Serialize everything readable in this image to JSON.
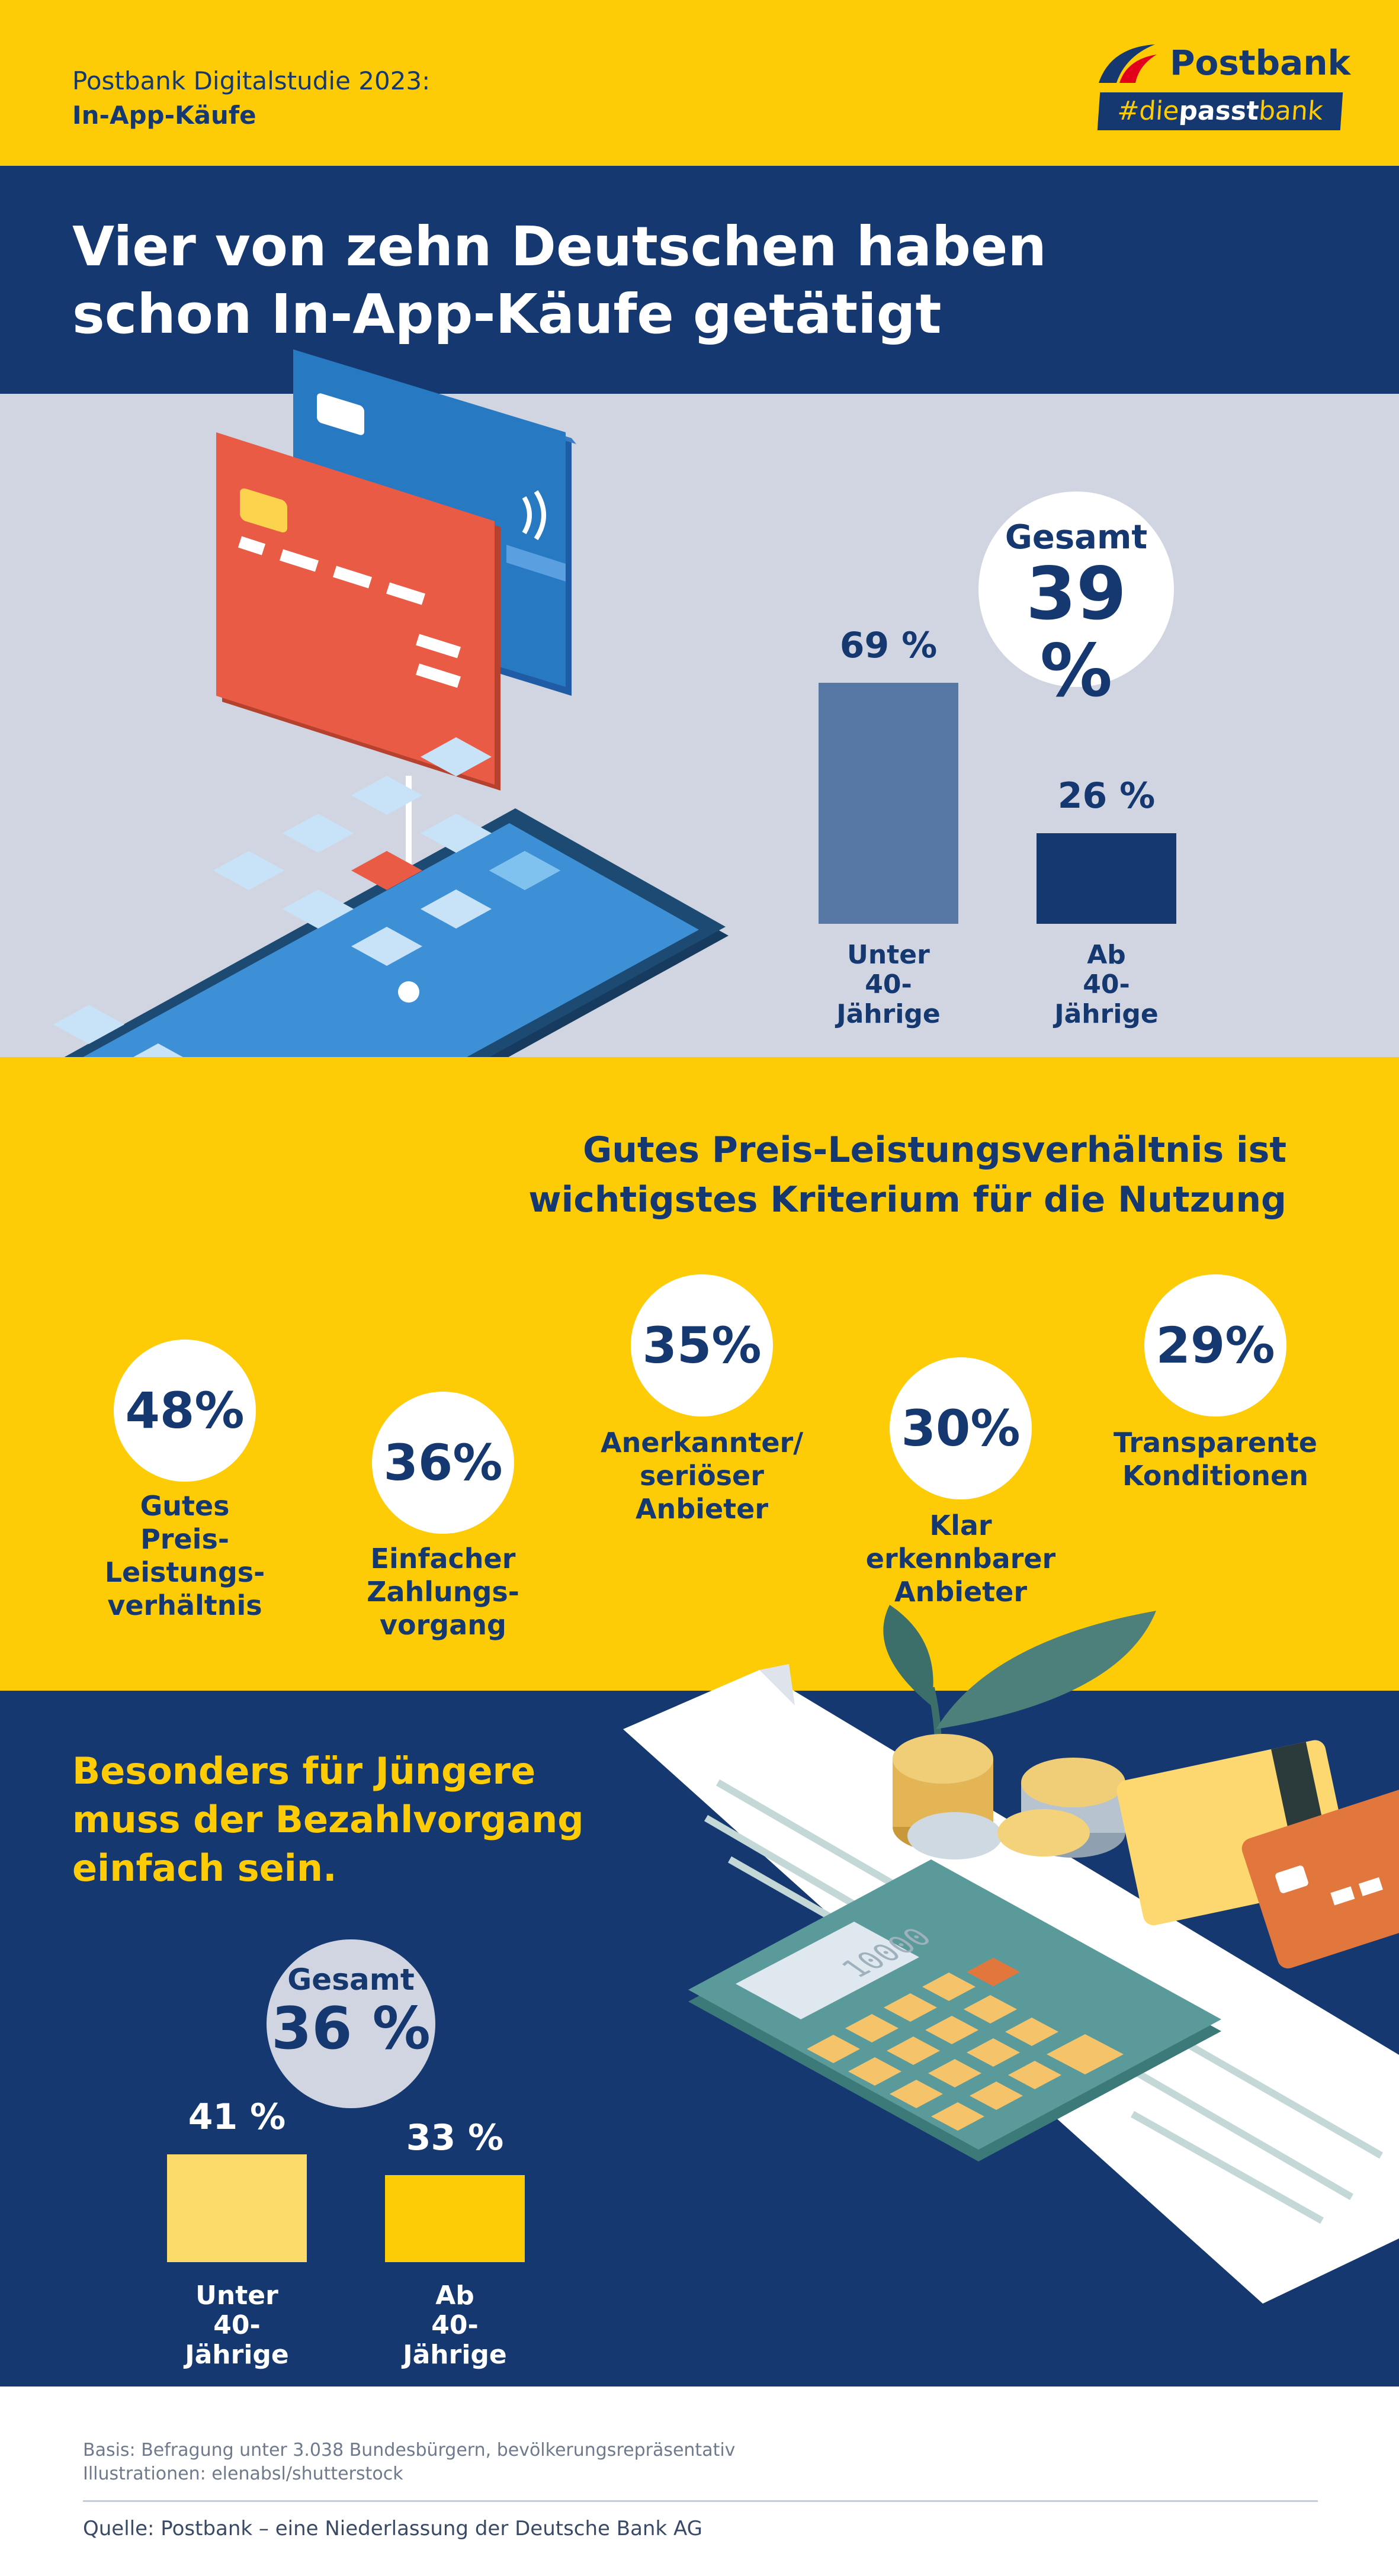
{
  "header": {
    "study_line1": "Postbank Digitalstudie 2023:",
    "study_line2": "In-App-Käufe",
    "logo_name": "Postbank",
    "hashtag_pre": "#die",
    "hashtag_bold": "passt",
    "hashtag_post": "bank"
  },
  "title": {
    "line1": "Vier von zehn Deutschen haben",
    "line2": "schon In-App-Käufe getätigt"
  },
  "colors": {
    "navy": "#14386f",
    "yellow": "#fdcc07",
    "steel_blue": "#5778a4",
    "light_yellow": "#fddb6b",
    "grey_band": "#d0d5e1"
  },
  "chart_data": [
    {
      "type": "bar",
      "categories": [
        "Unter 40-Jährige",
        "Ab 40-Jährige"
      ],
      "category_lines": [
        [
          "Unter",
          "40-Jährige"
        ],
        [
          "Ab",
          "40-Jährige"
        ]
      ],
      "values": [
        69,
        26
      ],
      "value_labels": [
        "69 %",
        "26 %"
      ],
      "total_label": "Gesamt",
      "total_value": "39 %",
      "ylim": [
        0,
        100
      ]
    },
    {
      "type": "bar",
      "title_lines": [
        "Gutes Preis-Leistungsverhältnis ist",
        "wichtigstes Kriterium für die Nutzung"
      ],
      "categories": [
        "Gutes Preis-Leistungs-verhältnis",
        "Einfacher Zahlungs-vorgang",
        "Anerkannter/seriöser Anbieter",
        "Klar erkennbarer Anbieter",
        "Transparente Konditionen"
      ],
      "label_lines": [
        [
          "Gutes",
          "Preis-Leistungs-",
          "verhältnis"
        ],
        [
          "Einfacher",
          "Zahlungs-",
          "vorgang"
        ],
        [
          "Anerkannter/",
          "seriöser",
          "Anbieter"
        ],
        [
          "Klar erkennbarer",
          "Anbieter"
        ],
        [
          "Transparente",
          "Konditionen"
        ]
      ],
      "values": [
        48,
        36,
        35,
        30,
        29
      ],
      "value_labels": [
        "48%",
        "36%",
        "35%",
        "30%",
        "29%"
      ]
    },
    {
      "type": "bar",
      "title_lines": [
        "Besonders für Jüngere",
        "muss der Bezahlvorgang",
        "einfach sein."
      ],
      "categories": [
        "Unter 40-Jährige",
        "Ab 40-Jährige"
      ],
      "category_lines": [
        [
          "Unter",
          "40-Jährige"
        ],
        [
          "Ab",
          "40-Jährige"
        ]
      ],
      "values": [
        41,
        33
      ],
      "value_labels": [
        "41 %",
        "33 %"
      ],
      "total_label": "Gesamt",
      "total_value": "36 %",
      "ylim": [
        0,
        100
      ]
    }
  ],
  "calculator_display": "10000",
  "footer": {
    "basis": "Basis: Befragung unter 3.038 Bundesbürgern, bevölkerungsrepräsentativ",
    "illustrations": "Illustrationen: elenabsl/shutterstock",
    "source": "Quelle: Postbank – eine Niederlassung der Deutsche Bank AG"
  }
}
